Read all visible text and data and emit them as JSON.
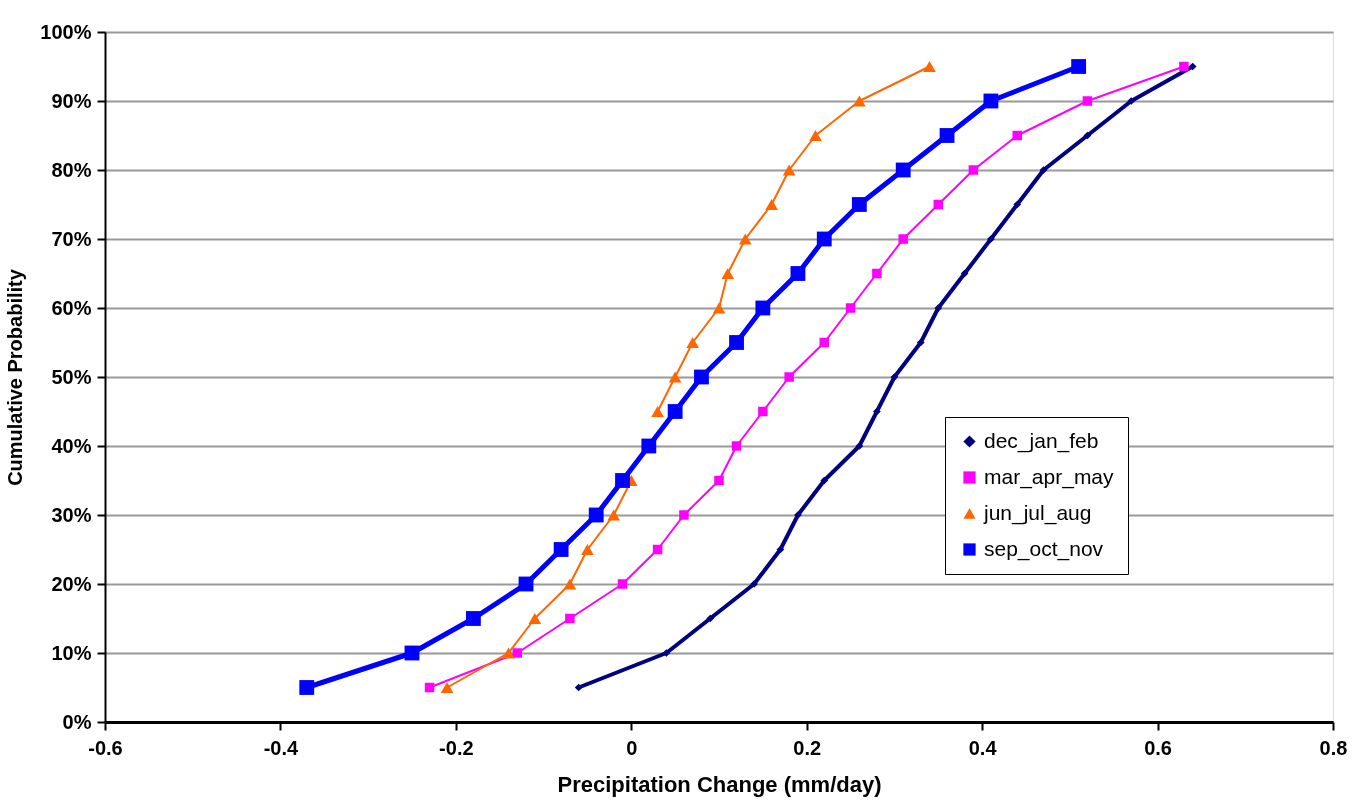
{
  "chart_data": {
    "type": "line",
    "xlabel": "Precipitation Change (mm/day)",
    "ylabel": "Cumulative Probability",
    "series": [
      {
        "name": "dec_jan_feb",
        "color": "#000080",
        "marker": "diamond",
        "x": [
          -0.06,
          0.04,
          0.09,
          0.14,
          0.17,
          0.19,
          0.22,
          0.26,
          0.28,
          0.3,
          0.33,
          0.35,
          0.38,
          0.41,
          0.44,
          0.47,
          0.52,
          0.57,
          0.64
        ],
        "values": [
          5,
          10,
          15,
          20,
          25,
          30,
          35,
          40,
          45,
          50,
          55,
          60,
          65,
          70,
          75,
          80,
          85,
          90,
          95
        ]
      },
      {
        "name": "mar_apr_may",
        "color": "#ff00ff",
        "marker": "square",
        "x": [
          -0.23,
          -0.13,
          -0.07,
          -0.01,
          0.03,
          0.06,
          0.1,
          0.12,
          0.15,
          0.18,
          0.22,
          0.25,
          0.28,
          0.31,
          0.35,
          0.39,
          0.44,
          0.52,
          0.63
        ],
        "values": [
          5,
          10,
          15,
          20,
          25,
          30,
          35,
          40,
          45,
          50,
          55,
          60,
          65,
          70,
          75,
          80,
          85,
          90,
          95
        ]
      },
      {
        "name": "jun_jul_aug",
        "color": "#ff6600",
        "marker": "triangle",
        "x": [
          -0.21,
          -0.14,
          -0.11,
          -0.07,
          -0.05,
          -0.02,
          0.0,
          null,
          0.03,
          0.05,
          0.07,
          0.1,
          0.11,
          0.13,
          0.16,
          0.18,
          0.21,
          0.26,
          0.34
        ],
        "values": [
          5,
          10,
          15,
          20,
          25,
          30,
          35,
          null,
          45,
          50,
          55,
          60,
          65,
          70,
          75,
          80,
          85,
          90,
          95
        ]
      },
      {
        "name": "sep_oct_nov",
        "color": "#0000ff",
        "marker": "square",
        "x": [
          -0.37,
          -0.25,
          -0.18,
          -0.12,
          -0.08,
          -0.04,
          -0.01,
          0.02,
          0.05,
          0.08,
          0.12,
          0.15,
          0.19,
          0.22,
          0.26,
          0.31,
          0.36,
          0.41,
          0.51
        ],
        "values": [
          5,
          10,
          15,
          20,
          25,
          30,
          35,
          40,
          45,
          50,
          55,
          60,
          65,
          70,
          75,
          80,
          85,
          90,
          95
        ]
      }
    ],
    "xlim": [
      -0.6,
      0.8
    ],
    "xticks": [
      -0.6,
      -0.4,
      -0.2,
      0,
      0.2,
      0.4,
      0.6,
      0.8
    ],
    "ylim": [
      0,
      100
    ],
    "yticks": [
      {
        "value": 0,
        "label": "0%"
      },
      {
        "value": 10,
        "label": "10%"
      },
      {
        "value": 20,
        "label": "20%"
      },
      {
        "value": 30,
        "label": "30%"
      },
      {
        "value": 40,
        "label": "40%"
      },
      {
        "value": 50,
        "label": "50%"
      },
      {
        "value": 60,
        "label": "60%"
      },
      {
        "value": 70,
        "label": "70%"
      },
      {
        "value": 80,
        "label": "80%"
      },
      {
        "value": 90,
        "label": "90%"
      },
      {
        "value": 100,
        "label": "100%"
      }
    ],
    "grid": "y",
    "legend": "right",
    "line_style": "solid"
  }
}
